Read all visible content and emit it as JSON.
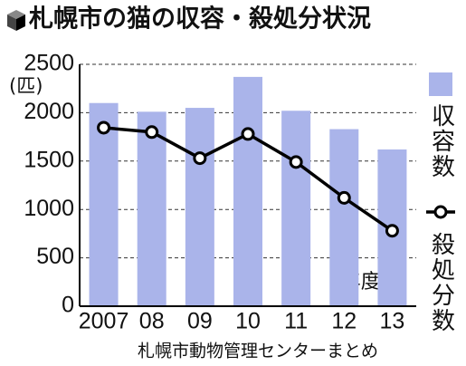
{
  "chart_data": {
    "type": "combo",
    "title": "札幌市の猫の収容・殺処分状況",
    "y_unit": "(匹)",
    "x_unit": "(年度)",
    "source": "札幌市動物管理センターまとめ",
    "categories": [
      "2007",
      "08",
      "09",
      "10",
      "11",
      "12",
      "13"
    ],
    "series": [
      {
        "name": "収容数",
        "type": "bar",
        "color": "#aab4ea",
        "values": [
          2100,
          2010,
          2050,
          2370,
          2020,
          1830,
          1620
        ]
      },
      {
        "name": "殺処分数",
        "type": "line",
        "color": "#000000",
        "values": [
          1845,
          1800,
          1530,
          1780,
          1490,
          1120,
          780
        ]
      }
    ],
    "ylim": [
      0,
      2500
    ],
    "yticks": [
      0,
      500,
      1000,
      1500,
      2000,
      2500
    ],
    "grid": true
  }
}
